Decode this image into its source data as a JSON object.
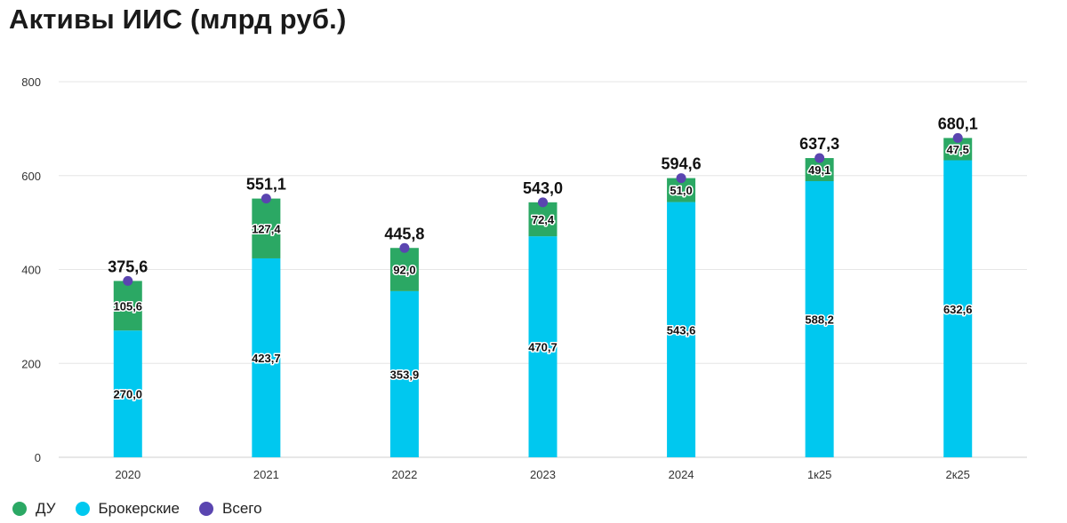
{
  "title": "Активы ИИС (млрд руб.)",
  "chart_data": {
    "type": "bar",
    "stacked": true,
    "categories": [
      "2020",
      "2021",
      "2022",
      "2023",
      "2024",
      "1к25",
      "2к25"
    ],
    "series": [
      {
        "name": "Брокерские",
        "color": "#00C8EF",
        "values": [
          270.0,
          423.7,
          353.9,
          470.7,
          543.6,
          588.2,
          632.6
        ],
        "labels": [
          "270,0",
          "423,7",
          "353,9",
          "470,7",
          "543,6",
          "588,2",
          "632,6"
        ]
      },
      {
        "name": "ДУ",
        "color": "#2BA864",
        "values": [
          105.6,
          127.4,
          92.0,
          72.4,
          51.0,
          49.1,
          47.5
        ],
        "labels": [
          "105,6",
          "127,4",
          "92,0",
          "72,4",
          "51,0",
          "49,1",
          "47,5"
        ]
      }
    ],
    "totals": {
      "name": "Всего",
      "color": "#5A45B0",
      "values": [
        375.6,
        551.1,
        445.8,
        543.0,
        594.6,
        637.3,
        680.1
      ],
      "labels": [
        "375,6",
        "551,1",
        "445,8",
        "543,0",
        "594,6",
        "637,3",
        "680,1"
      ]
    },
    "ylim": [
      0,
      800
    ],
    "yticks": [
      0,
      200,
      400,
      600,
      800
    ],
    "grid": true,
    "legend_position": "bottom-left"
  },
  "legend": [
    {
      "label": "ДУ",
      "color": "#2BA864"
    },
    {
      "label": "Брокерские",
      "color": "#00C8EF"
    },
    {
      "label": "Всего",
      "color": "#5A45B0"
    }
  ]
}
